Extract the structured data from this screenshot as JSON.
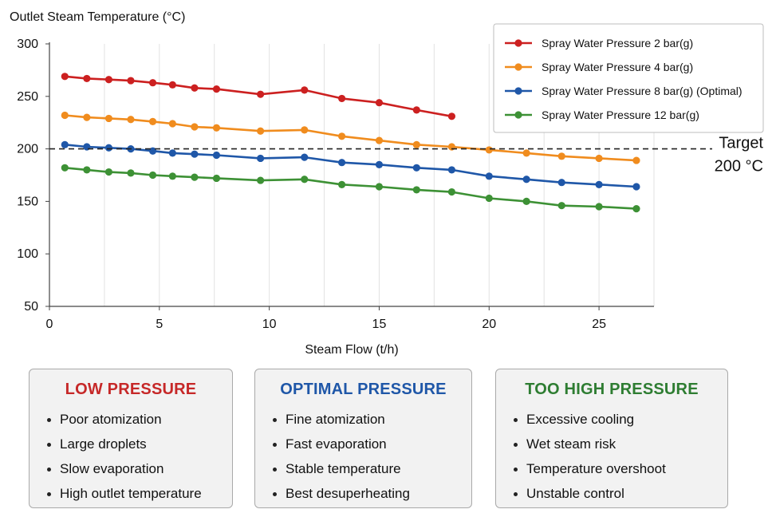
{
  "chart_data": {
    "type": "line",
    "ylabel": "Outlet Steam Temperature (°C)",
    "xlabel": "Steam Flow (t/h)",
    "xlim": [
      0,
      27.5
    ],
    "ylim": [
      50,
      300
    ],
    "xticks": [
      0,
      5,
      10,
      15,
      20,
      25
    ],
    "yticks": [
      50,
      100,
      150,
      200,
      250,
      300
    ],
    "grid": "vertical",
    "legend_position": "top-right",
    "target": {
      "value": 200,
      "label_line1": "Target",
      "label_line2": "200 °C"
    },
    "series": [
      {
        "name": "Spray Water Pressure 2 bar(g)",
        "color": "#cc2020",
        "x": [
          0.7,
          1.7,
          2.7,
          3.7,
          4.7,
          5.6,
          6.6,
          7.6,
          9.6,
          11.6,
          13.3,
          15.0,
          16.7,
          18.3
        ],
        "y": [
          269,
          267,
          266,
          265,
          263,
          261,
          258,
          257,
          252,
          256,
          248,
          244,
          237,
          231
        ]
      },
      {
        "name": "Spray Water Pressure 4 bar(g)",
        "color": "#f08c1e",
        "x": [
          0.7,
          1.7,
          2.7,
          3.7,
          4.7,
          5.6,
          6.6,
          7.6,
          9.6,
          11.6,
          13.3,
          15.0,
          16.7,
          18.3,
          20.0,
          21.7,
          23.3,
          25.0,
          26.7
        ],
        "y": [
          232,
          230,
          229,
          228,
          226,
          224,
          221,
          220,
          217,
          218,
          212,
          208,
          204,
          202,
          199,
          196,
          193,
          191,
          189
        ]
      },
      {
        "name": "Spray Water Pressure 8 bar(g) (Optimal)",
        "color": "#1f57a8",
        "x": [
          0.7,
          1.7,
          2.7,
          3.7,
          4.7,
          5.6,
          6.6,
          7.6,
          9.6,
          11.6,
          13.3,
          15.0,
          16.7,
          18.3,
          20.0,
          21.7,
          23.3,
          25.0,
          26.7
        ],
        "y": [
          204,
          202,
          201,
          200,
          198,
          196,
          195,
          194,
          191,
          192,
          187,
          185,
          182,
          180,
          174,
          171,
          168,
          166,
          164
        ]
      },
      {
        "name": "Spray Water Pressure 12 bar(g)",
        "color": "#3d9135",
        "x": [
          0.7,
          1.7,
          2.7,
          3.7,
          4.7,
          5.6,
          6.6,
          7.6,
          9.6,
          11.6,
          13.3,
          15.0,
          16.7,
          18.3,
          20.0,
          21.7,
          23.3,
          25.0,
          26.7
        ],
        "y": [
          182,
          180,
          178,
          177,
          175,
          174,
          173,
          172,
          170,
          171,
          166,
          164,
          161,
          159,
          153,
          150,
          146,
          145,
          143
        ]
      }
    ]
  },
  "panels": {
    "low": {
      "title": "LOW PRESSURE",
      "color": "#c62828",
      "items": [
        "Poor atomization",
        "Large droplets",
        "Slow evaporation",
        "High outlet temperature"
      ]
    },
    "optimal": {
      "title": "OPTIMAL PRESSURE",
      "color": "#1f57a8",
      "items": [
        "Fine atomization",
        "Fast evaporation",
        "Stable temperature",
        "Best desuperheating"
      ]
    },
    "high": {
      "title": "TOO HIGH PRESSURE",
      "color": "#2e7d32",
      "items": [
        "Excessive cooling",
        "Wet steam risk",
        "Temperature overshoot",
        "Unstable control"
      ]
    }
  }
}
